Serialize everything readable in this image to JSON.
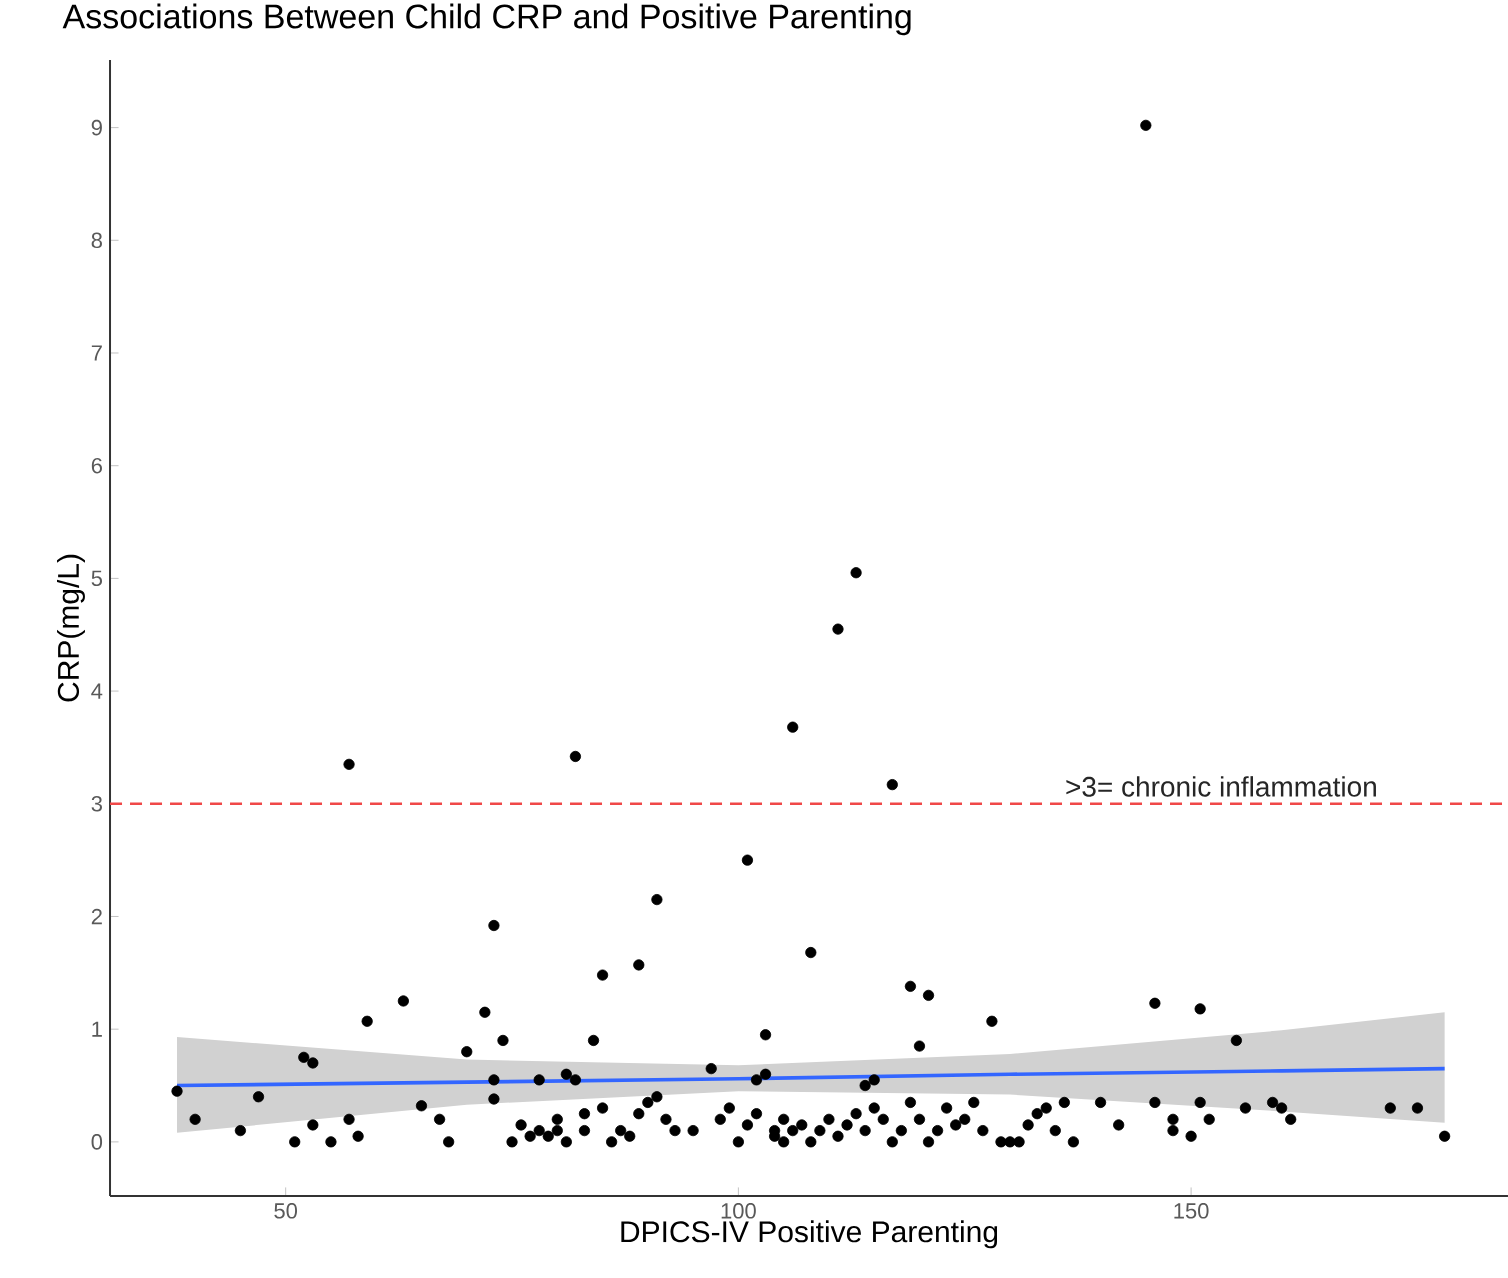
{
  "chart_data": {
    "type": "scatter",
    "title": "Associations Between Child CRP and Positive Parenting",
    "xlabel": "DPICS-IV Positive Parenting",
    "ylabel": "CRP(mg/L)",
    "xlim": [
      30.6,
      185
    ],
    "ylim": [
      -0.48,
      9.6
    ],
    "xticks": [
      50,
      100,
      150
    ],
    "yticks": [
      0,
      1,
      2,
      3,
      4,
      5,
      6,
      7,
      8,
      9
    ],
    "grid": false,
    "series": [
      {
        "color": "#000000",
        "x": [
          38,
          40,
          45,
          47,
          51,
          52,
          53,
          53,
          55,
          57,
          57,
          58,
          59,
          63,
          65,
          67,
          68,
          70,
          72,
          73,
          73,
          73,
          74,
          75,
          76,
          77,
          78,
          78,
          79,
          80,
          80,
          81,
          81,
          82,
          82,
          83,
          83,
          84,
          85,
          85,
          86,
          87,
          88,
          89,
          89,
          90,
          91,
          91,
          92,
          93,
          95,
          97,
          98,
          99,
          100,
          101,
          101,
          102,
          102,
          103,
          103,
          104,
          104,
          105,
          105,
          106,
          106,
          107,
          108,
          108,
          109,
          110,
          111,
          111,
          112,
          113,
          113,
          114,
          114,
          115,
          115,
          116,
          117,
          117,
          118,
          119,
          119,
          120,
          120,
          121,
          121,
          122,
          123,
          124,
          125,
          126,
          127,
          128,
          129,
          130,
          131,
          132,
          133,
          134,
          135,
          136,
          137,
          140,
          142,
          145,
          146,
          146,
          148,
          148,
          150,
          151,
          151,
          152,
          155,
          156,
          159,
          160,
          161,
          172,
          175,
          178
        ],
        "values": [
          0.45,
          0.2,
          0.1,
          0.4,
          0,
          0.75,
          0.7,
          0.15,
          0,
          3.35,
          0.2,
          0.05,
          1.07,
          1.25,
          0.32,
          0.2,
          0,
          0.8,
          1.15,
          1.92,
          0.55,
          0.38,
          0.9,
          0,
          0.15,
          0.05,
          0.1,
          0.55,
          0.05,
          0.1,
          0.2,
          0.6,
          0,
          3.42,
          0.55,
          0.25,
          0.1,
          0.9,
          1.48,
          0.3,
          0,
          0.1,
          0.05,
          1.57,
          0.25,
          0.35,
          2.15,
          0.4,
          0.2,
          0.1,
          0.1,
          0.65,
          0.2,
          0.3,
          0,
          2.5,
          0.15,
          0.55,
          0.25,
          0.95,
          0.6,
          0.1,
          0.05,
          0,
          0.2,
          3.68,
          0.1,
          0.15,
          1.68,
          0,
          0.1,
          0.2,
          4.55,
          0.05,
          0.15,
          5.05,
          0.25,
          0.5,
          0.1,
          0.55,
          0.3,
          0.2,
          3.17,
          0,
          0.1,
          0.35,
          1.38,
          0.85,
          0.2,
          1.3,
          0,
          0.1,
          0.3,
          0.15,
          0.2,
          0.35,
          0.1,
          1.07,
          0,
          0,
          0,
          0.15,
          0.25,
          0.3,
          0.1,
          0.35,
          0,
          0.35,
          0.15,
          9.02,
          1.23,
          0.35,
          0.2,
          0.1,
          0.05,
          1.18,
          0.35,
          0.2,
          0.9,
          0.3,
          0.35,
          0.3,
          0.2,
          0.3,
          0.3,
          0.05
        ]
      },
      {
        "type": "line",
        "color": "#3366ff",
        "x": [
          38,
          70,
          100,
          130,
          160,
          178
        ],
        "values": [
          0.5,
          0.53,
          0.56,
          0.6,
          0.63,
          0.65
        ],
        "lower": [
          0.08,
          0.33,
          0.45,
          0.42,
          0.27,
          0.17
        ],
        "upper": [
          0.93,
          0.73,
          0.68,
          0.78,
          0.99,
          1.15
        ]
      }
    ],
    "ref_lines": [
      {
        "axis": "y",
        "value": 3,
        "color": "#f04848",
        "line_style": "dashed"
      }
    ],
    "annotations": [
      ">3= chronic inflammation"
    ]
  }
}
